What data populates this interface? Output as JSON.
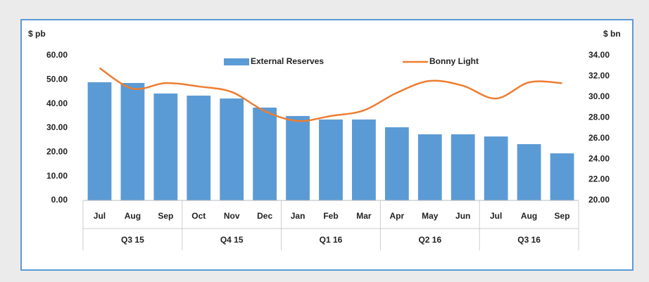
{
  "chart_data": {
    "type": "bar-line",
    "y_axis_title": "$ pb",
    "y2_axis_title": "$ bn",
    "categories": [
      "Jul",
      "Aug",
      "Sep",
      "Oct",
      "Nov",
      "Dec",
      "Jan",
      "Feb",
      "Mar",
      "Apr",
      "May",
      "Jun",
      "Jul",
      "Aug",
      "Sep"
    ],
    "groups": [
      "Q3 15",
      "Q4 15",
      "Q1 16",
      "Q2 16",
      "Q3 16"
    ],
    "series": [
      {
        "name": "External Reserves",
        "type": "bar",
        "axis": "y2",
        "color": "#5b9bd5",
        "values": [
          31.42,
          31.35,
          30.33,
          30.13,
          29.85,
          28.97,
          28.16,
          27.82,
          27.82,
          27.07,
          26.39,
          26.39,
          26.18,
          25.44,
          24.55
        ]
      },
      {
        "name": "Bonny Light",
        "type": "line",
        "axis": "y",
        "color": "#ed7d31",
        "values": [
          54.8,
          46.3,
          48.6,
          47.2,
          44.9,
          37.0,
          32.9,
          35.0,
          37.3,
          44.6,
          49.5,
          47.5,
          42.2,
          48.9,
          48.6
        ]
      }
    ],
    "ylim": [
      0,
      60
    ],
    "yticks": [
      {
        "value": 0,
        "label": "0.00"
      },
      {
        "value": 10,
        "label": "10.00"
      },
      {
        "value": 20,
        "label": "20.00"
      },
      {
        "value": 30,
        "label": "30.00"
      },
      {
        "value": 40,
        "label": "40.00"
      },
      {
        "value": 50,
        "label": "50.00"
      },
      {
        "value": 60,
        "label": "60.00"
      }
    ],
    "y2lim": [
      20,
      34
    ],
    "y2ticks": [
      {
        "value": 20,
        "label": "20.00"
      },
      {
        "value": 22,
        "label": "22.00"
      },
      {
        "value": 24,
        "label": "24.00"
      },
      {
        "value": 26,
        "label": "26.00"
      },
      {
        "value": 28,
        "label": "28.00"
      },
      {
        "value": 30,
        "label": "30.00"
      },
      {
        "value": 32,
        "label": "32.00"
      },
      {
        "value": 34,
        "label": "34.00"
      }
    ],
    "legend": "top",
    "grid": false
  }
}
